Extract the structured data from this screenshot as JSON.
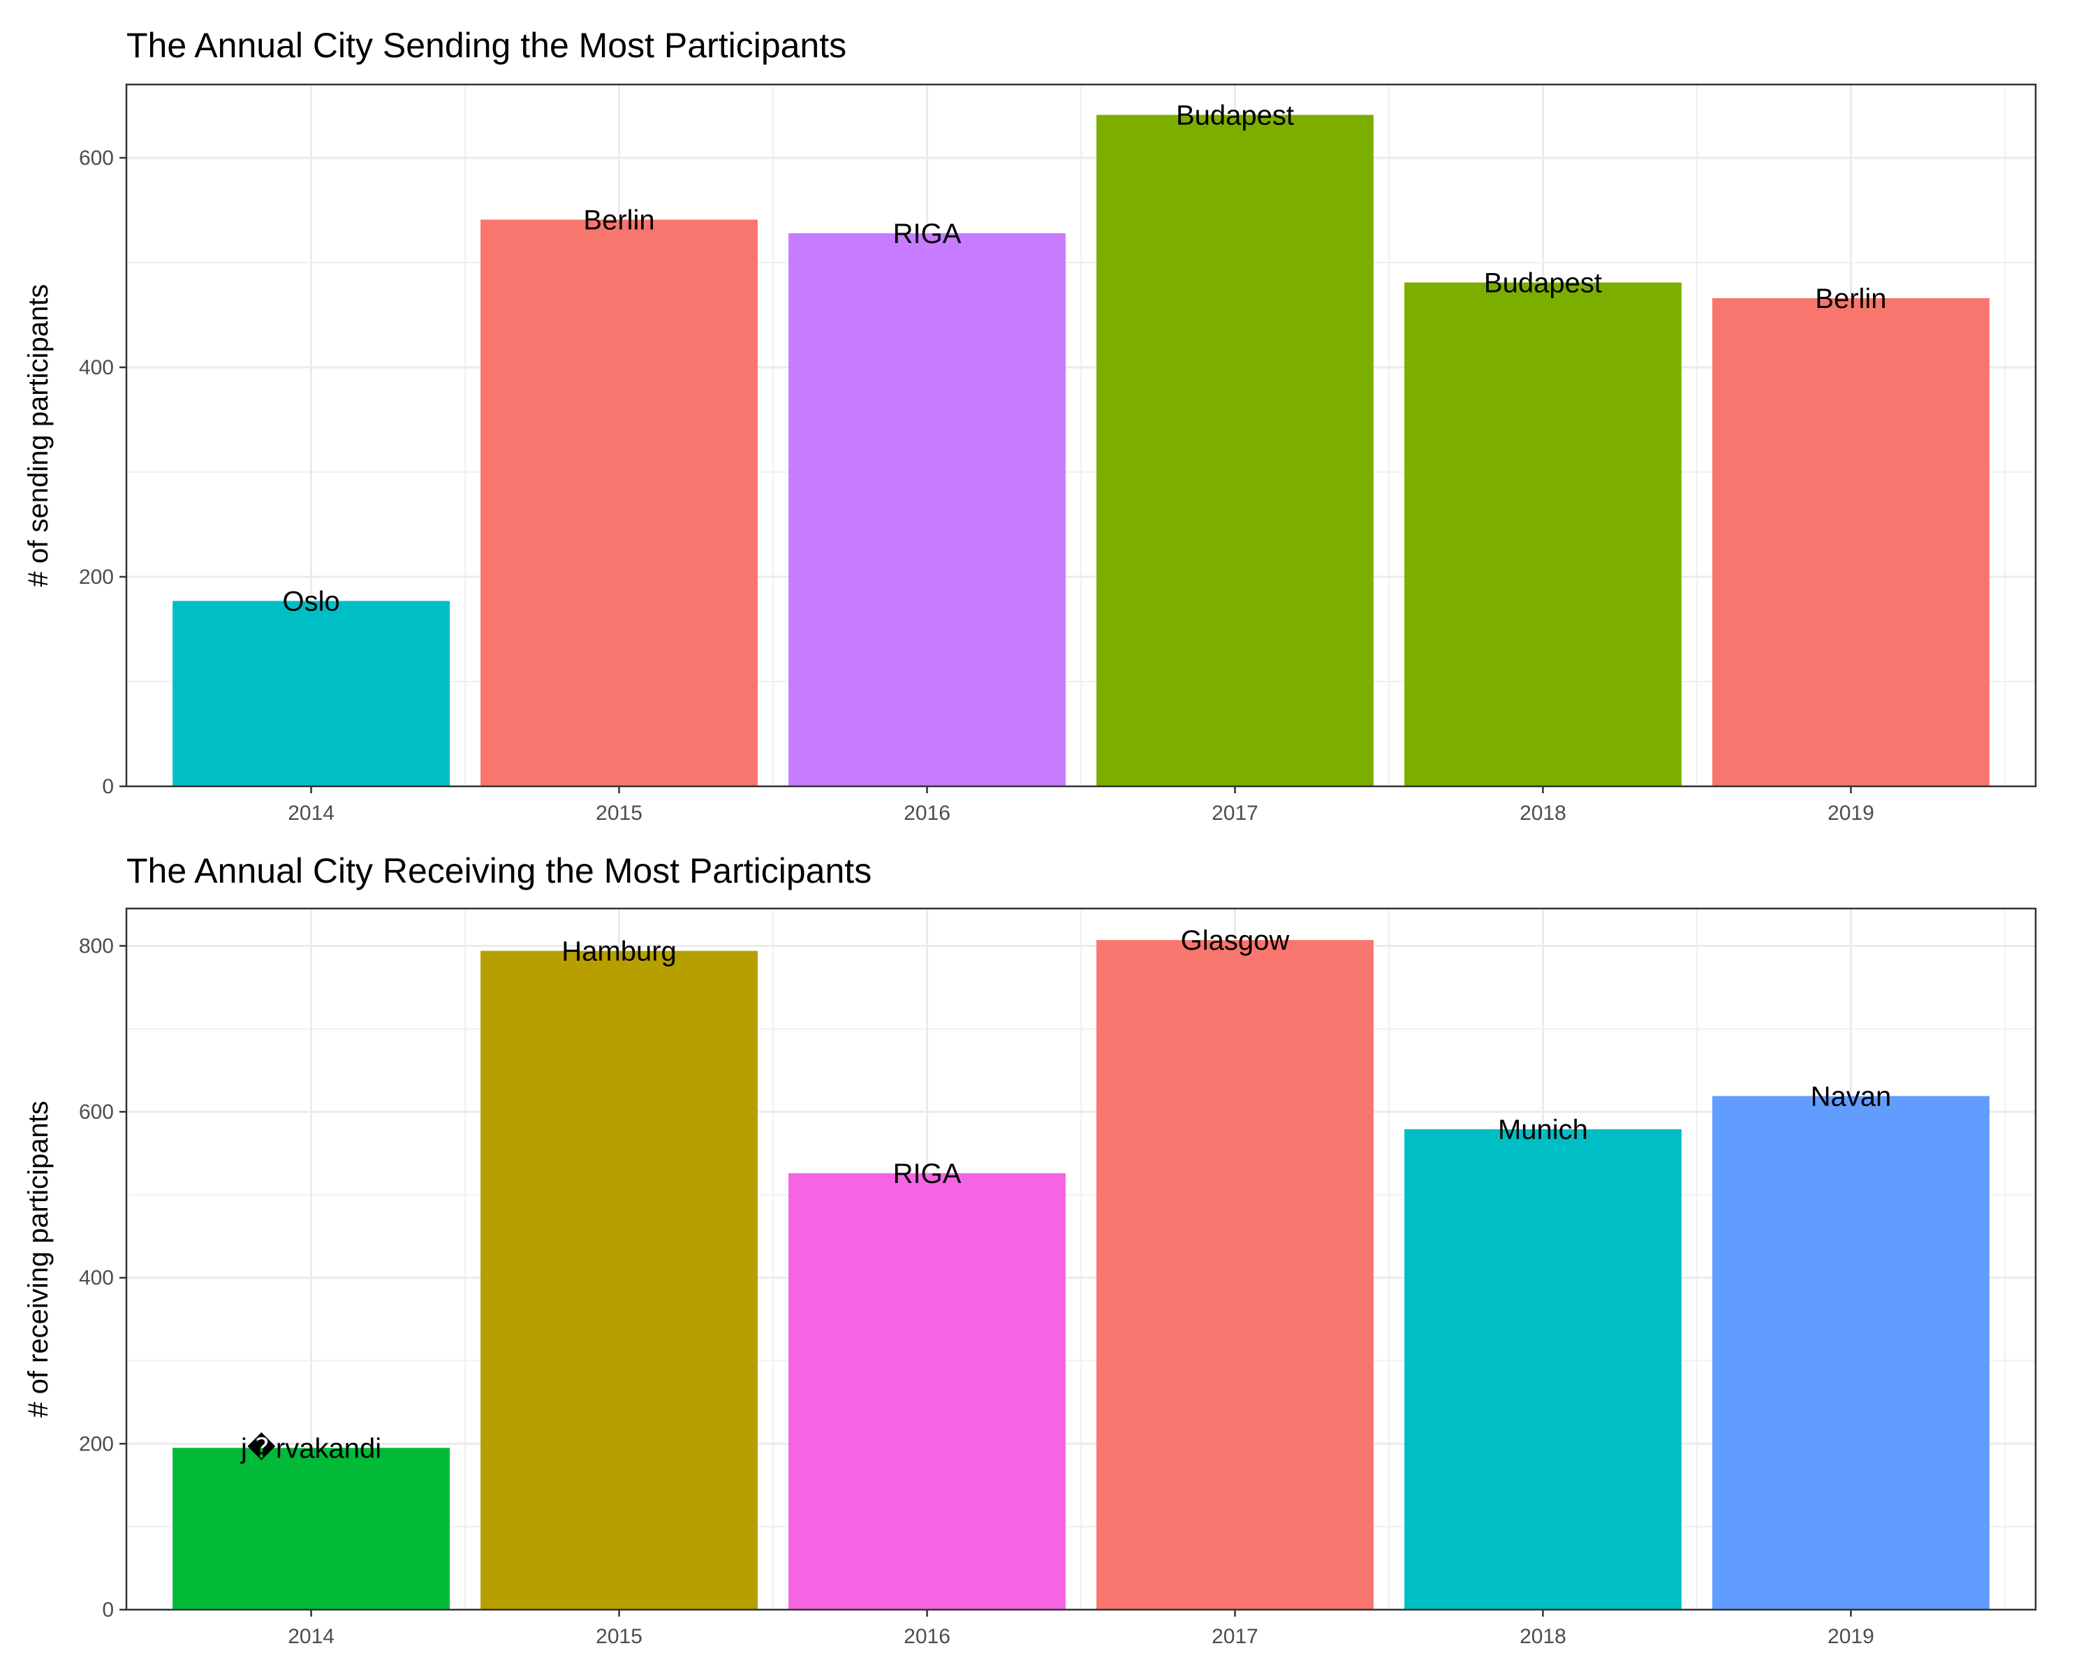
{
  "chart_data": [
    {
      "type": "bar",
      "title": "The Annual City Sending the Most Participants",
      "xlabel": "",
      "ylabel": "# of sending participants",
      "categories": [
        "2014",
        "2015",
        "2016",
        "2017",
        "2018",
        "2019"
      ],
      "values": [
        177,
        541,
        528,
        641,
        481,
        466
      ],
      "labels": [
        "Oslo",
        "Berlin",
        "RIGA",
        "Budapest",
        "Budapest",
        "Berlin"
      ],
      "colors": [
        "#00BFC4",
        "#F8766D",
        "#C77CFF",
        "#7CAE00",
        "#7CAE00",
        "#F8766D"
      ],
      "yticks": [
        "0",
        "200",
        "400",
        "600"
      ],
      "ylim": [
        0,
        670
      ],
      "grid": true,
      "legend": "none"
    },
    {
      "type": "bar",
      "title": "The Annual City Receiving the Most Participants",
      "xlabel": "",
      "ylabel": "# of receiving participants",
      "categories": [
        "2014",
        "2015",
        "2016",
        "2017",
        "2018",
        "2019"
      ],
      "values": [
        195,
        794,
        526,
        807,
        579,
        619
      ],
      "labels": [
        "j�rvakandi",
        "Hamburg",
        "RIGA",
        "Glasgow",
        "Munich",
        "Navan"
      ],
      "colors": [
        "#00BA38",
        "#B79F00",
        "#F564E3",
        "#F8766D",
        "#00BFC4",
        "#619CFF"
      ],
      "yticks": [
        "0",
        "200",
        "400",
        "600",
        "800"
      ],
      "ylim": [
        0,
        845
      ],
      "grid": true,
      "legend": "none"
    }
  ]
}
